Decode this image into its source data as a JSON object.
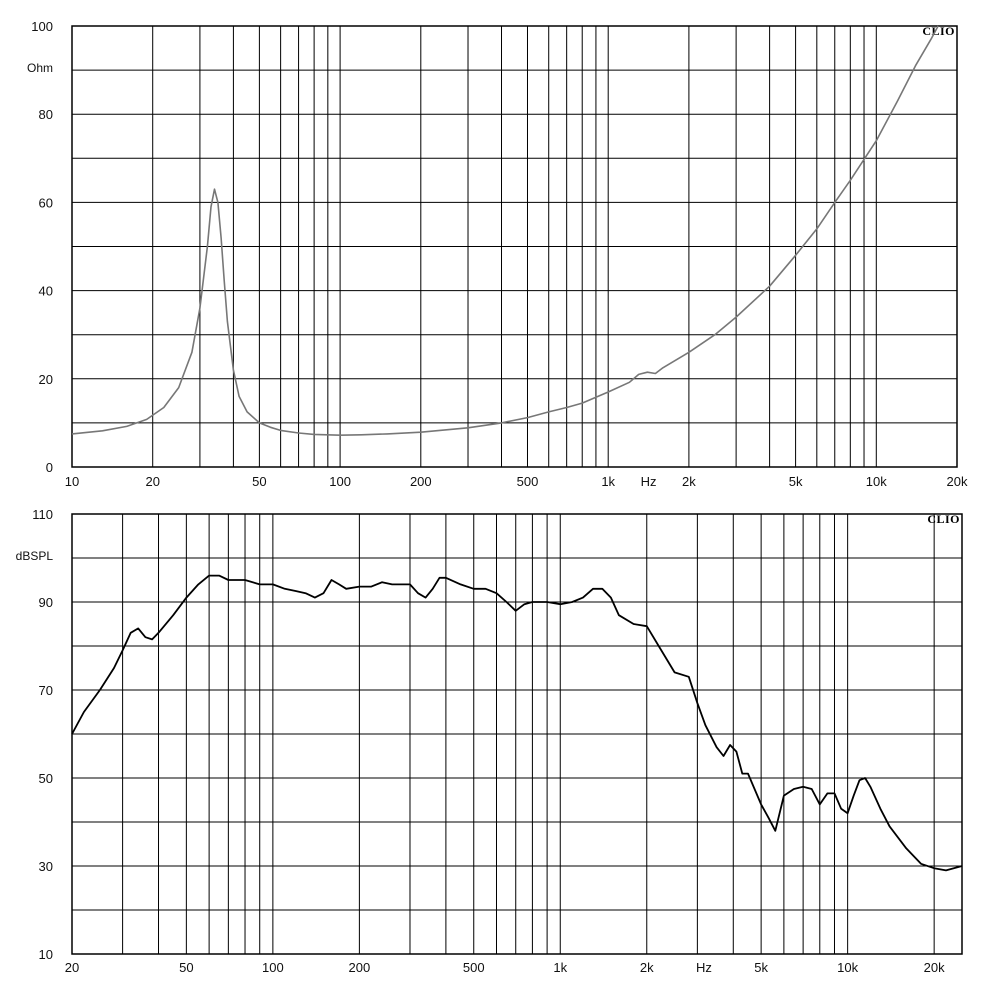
{
  "chart_data": [
    {
      "type": "line",
      "brand": "CLIO",
      "ylabel": "Ohm",
      "xunit": "Hz",
      "xscale": "log",
      "xlim": [
        10,
        20000
      ],
      "ylim": [
        0,
        100
      ],
      "grid": true,
      "x_ticks": [
        {
          "value": 10,
          "label": "10"
        },
        {
          "value": 20,
          "label": "20"
        },
        {
          "value": 50,
          "label": "50"
        },
        {
          "value": 100,
          "label": "100"
        },
        {
          "value": 200,
          "label": "200"
        },
        {
          "value": 500,
          "label": "500"
        },
        {
          "value": 1000,
          "label": "1k"
        },
        {
          "value": 2000,
          "label": "2k"
        },
        {
          "value": 5000,
          "label": "5k"
        },
        {
          "value": 10000,
          "label": "10k"
        },
        {
          "value": 20000,
          "label": "20k"
        }
      ],
      "y_ticks": [
        {
          "value": 0,
          "label": "0"
        },
        {
          "value": 20,
          "label": "20"
        },
        {
          "value": 40,
          "label": "40"
        },
        {
          "value": 60,
          "label": "60"
        },
        {
          "value": 80,
          "label": "80"
        },
        {
          "value": 100,
          "label": "100"
        }
      ],
      "series": [
        {
          "color": "#777777",
          "x": [
            10,
            13,
            16,
            19,
            22,
            25,
            28,
            30,
            32,
            33,
            34,
            35,
            36,
            37,
            38,
            40,
            42,
            45,
            50,
            55,
            60,
            70,
            80,
            100,
            120,
            150,
            200,
            300,
            400,
            500,
            600,
            700,
            800,
            1000,
            1200,
            1300,
            1400,
            1500,
            1600,
            2000,
            2500,
            3000,
            4000,
            5000,
            6000,
            7000,
            8000,
            10000,
            12000,
            14000,
            16000,
            17000
          ],
          "y": [
            7.5,
            8.2,
            9.2,
            10.8,
            13.5,
            18,
            26,
            36,
            50,
            59,
            63,
            60,
            52,
            42,
            33,
            22,
            16,
            12.5,
            10,
            9,
            8.3,
            7.7,
            7.4,
            7.2,
            7.3,
            7.5,
            7.9,
            8.9,
            10,
            11.2,
            12.5,
            13.5,
            14.5,
            17,
            19.2,
            21,
            21.5,
            21.2,
            22.5,
            26,
            30,
            34,
            41,
            48,
            54,
            60,
            65,
            74,
            83,
            91,
            97,
            100
          ]
        }
      ]
    },
    {
      "type": "line",
      "brand": "CLIO",
      "ylabel": "dBSPL",
      "xunit": "Hz",
      "xscale": "log",
      "xlim": [
        20,
        25000
      ],
      "ylim": [
        10,
        110
      ],
      "grid": true,
      "x_ticks": [
        {
          "value": 20,
          "label": "20"
        },
        {
          "value": 50,
          "label": "50"
        },
        {
          "value": 100,
          "label": "100"
        },
        {
          "value": 200,
          "label": "200"
        },
        {
          "value": 500,
          "label": "500"
        },
        {
          "value": 1000,
          "label": "1k"
        },
        {
          "value": 2000,
          "label": "2k"
        },
        {
          "value": 5000,
          "label": "5k"
        },
        {
          "value": 10000,
          "label": "10k"
        },
        {
          "value": 20000,
          "label": "20k"
        }
      ],
      "y_ticks": [
        {
          "value": 10,
          "label": "10"
        },
        {
          "value": 30,
          "label": "30"
        },
        {
          "value": 50,
          "label": "50"
        },
        {
          "value": 70,
          "label": "70"
        },
        {
          "value": 90,
          "label": "90"
        },
        {
          "value": 110,
          "label": "110"
        }
      ],
      "series": [
        {
          "color": "#000000",
          "x": [
            20,
            22,
            25,
            28,
            30,
            32,
            34,
            36,
            38,
            40,
            45,
            50,
            55,
            60,
            65,
            70,
            80,
            90,
            100,
            110,
            120,
            130,
            140,
            150,
            160,
            170,
            180,
            200,
            220,
            240,
            260,
            280,
            300,
            320,
            340,
            360,
            380,
            400,
            450,
            500,
            550,
            600,
            650,
            700,
            750,
            800,
            900,
            1000,
            1100,
            1200,
            1300,
            1400,
            1500,
            1600,
            1800,
            2000,
            2200,
            2500,
            2800,
            3000,
            3200,
            3500,
            3700,
            3900,
            4100,
            4300,
            4500,
            5000,
            5300,
            5600,
            6000,
            6500,
            7000,
            7500,
            8000,
            8500,
            9000,
            9500,
            10000,
            10500,
            11000,
            11500,
            12000,
            13000,
            14000,
            16000,
            18000,
            20000,
            22000,
            25000
          ],
          "y": [
            60,
            65,
            70,
            75,
            79,
            83,
            84,
            82,
            81.5,
            83,
            87,
            91,
            94,
            96,
            96,
            95,
            95,
            94,
            94,
            93,
            92.5,
            92,
            91,
            92,
            95,
            94,
            93,
            93.5,
            93.5,
            94.5,
            94,
            94,
            94,
            92,
            91,
            93,
            95.5,
            95.5,
            94,
            93,
            93,
            92,
            90,
            88,
            89.5,
            90,
            90,
            89.5,
            90,
            91,
            93,
            93,
            91,
            87,
            85,
            84.5,
            80,
            74,
            73,
            67,
            62,
            57,
            55,
            57.5,
            56,
            51,
            51,
            44,
            41,
            38,
            46,
            47.5,
            48,
            47.5,
            44,
            46.5,
            46.5,
            43,
            42,
            46,
            49.5,
            50,
            48,
            43,
            39,
            34,
            30.5,
            29.5,
            29,
            30
          ]
        }
      ]
    }
  ]
}
